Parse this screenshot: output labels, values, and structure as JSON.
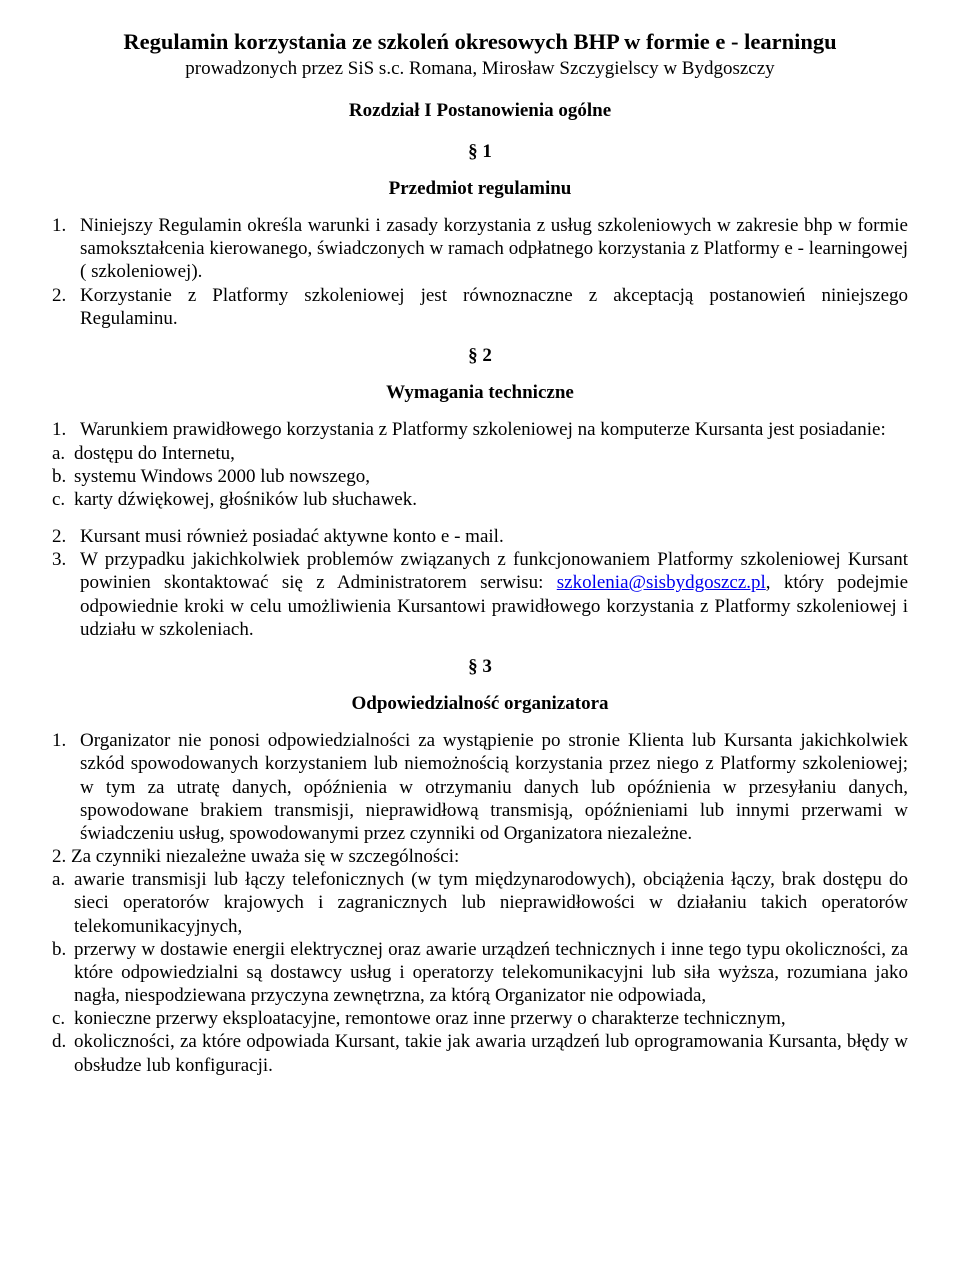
{
  "title": "Regulamin korzystania ze szkoleń okresowych BHP w formie e - learningu",
  "subtitle": "prowadzonych przez SiS s.c. Romana, Mirosław Szczygielscy w Bydgoszczy",
  "chapter": "Rozdział I Postanowienia ogólne",
  "s1": {
    "num": "§ 1",
    "title": "Przedmiot regulaminu",
    "p1_marker": "1.",
    "p1": "Niniejszy Regulamin określa warunki i zasady korzystania z usług szkoleniowych w zakresie bhp w formie samokształcenia kierowanego, świadczonych w ramach odpłatnego korzystania z Platformy e - learningowej ( szkoleniowej).",
    "p2_marker": "2.",
    "p2": "Korzystanie z Platformy szkoleniowej jest równoznaczne z akceptacją postanowień niniejszego Regulaminu."
  },
  "s2": {
    "num": "§ 2",
    "title": "Wymagania techniczne",
    "p1_marker": "1.",
    "p1": "Warunkiem prawidłowego korzystania z Platformy szkoleniowej na komputerze Kursanta jest posiadanie:",
    "a_marker": "a.",
    "a": "dostępu do Internetu,",
    "b_marker": "b.",
    "b": "systemu Windows 2000 lub nowszego,",
    "c_marker": "c.",
    "c": "karty dźwiękowej, głośników lub słuchawek.",
    "p2_marker": "2.",
    "p2": "Kursant musi również posiadać aktywne konto e - mail.",
    "p3_marker": "3.",
    "p3_before": "W przypadku jakichkolwiek problemów związanych z funkcjonowaniem Platformy szkoleniowej Kursant powinien skontaktować się z Administratorem serwisu: ",
    "p3_link": "szkolenia@sisbydgoszcz.pl",
    "p3_after": ", który podejmie odpowiednie kroki w celu umożliwienia Kursantowi prawidłowego korzystania z Platformy szkoleniowej i udziału w szkoleniach."
  },
  "s3": {
    "num": "§ 3",
    "title": "Odpowiedzialność organizatora",
    "p1_marker": "1.",
    "p1": "Organizator nie ponosi odpowiedzialności za wystąpienie po stronie Klienta lub Kursanta jakichkolwiek szkód spowodowanych korzystaniem lub niemożnością korzystania przez niego z Platformy szkoleniowej; w tym za utratę danych, opóźnienia w otrzymaniu danych lub opóźnienia w przesyłaniu danych, spowodowane brakiem transmisji, nieprawidłową transmisją, opóźnieniami lub innymi przerwami w świadczeniu usług, spowodowanymi przez czynniki od Organizatora niezależne.",
    "p2": "2. Za czynniki niezależne uważa się w szczególności:",
    "a_marker": "a.",
    "a": "awarie transmisji lub łączy telefonicznych (w tym międzynarodowych), obciążenia łączy, brak dostępu do sieci operatorów krajowych i zagranicznych lub nieprawidłowości w działaniu takich operatorów telekomunikacyjnych,",
    "b_marker": "b.",
    "b": "przerwy w dostawie energii elektrycznej oraz awarie urządzeń technicznych i inne tego typu okoliczności, za które odpowiedzialni są dostawcy usług i operatorzy telekomunikacyjni lub siła wyższa, rozumiana jako nagła, niespodziewana przyczyna zewnętrzna, za którą Organizator nie odpowiada,",
    "c_marker": "c.",
    "c": "konieczne przerwy eksploatacyjne, remontowe oraz inne przerwy o charakterze technicznym,",
    "d_marker": "d.",
    "d": "okoliczności, za które odpowiada Kursant, takie jak awaria urządzeń lub oprogramowania Kursanta, błędy w obsłudze lub konfiguracji."
  }
}
